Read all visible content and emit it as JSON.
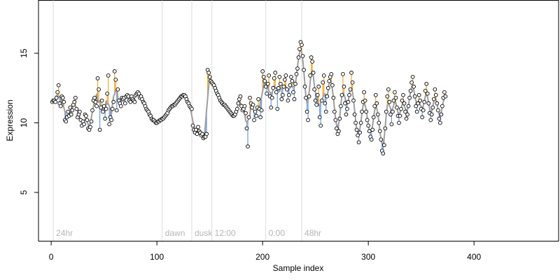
{
  "chart_data": {
    "type": "scatter",
    "xlabel": "Sample index",
    "ylabel": "Expression",
    "xlim": [
      -12,
      480
    ],
    "ylim": [
      1.5,
      18.8
    ],
    "x_ticks": [
      0,
      100,
      200,
      300,
      400
    ],
    "y_ticks": [
      5,
      10,
      15
    ],
    "markers": [
      {
        "x": 2,
        "label": "24hr"
      },
      {
        "x": 105,
        "label": "dawn"
      },
      {
        "x": 133,
        "label": "dusk"
      },
      {
        "x": 152,
        "label": "12:00"
      },
      {
        "x": 203,
        "label": "0:00"
      },
      {
        "x": 237,
        "label": "48hr"
      }
    ],
    "colors": {
      "above": "#f5a623",
      "below": "#6b9be0",
      "fit": "#9e9e9e",
      "marker": "#dcdcdc",
      "point_edge": "#000000"
    },
    "series": [
      {
        "x_start": 1,
        "observed": [
          11.5,
          11.6,
          11.6,
          11.5,
          11.8,
          12.2,
          12.7,
          11.4,
          11.2,
          11.9,
          11.8,
          11.5,
          10.2,
          10.1,
          10.4,
          10.8,
          10.5,
          11.1,
          10.6,
          10.9,
          11.3,
          11.5,
          11.8,
          11.0,
          10.4,
          10.6,
          10.8,
          10.2,
          9.8,
          10.1,
          9.9,
          10.6,
          10.5,
          10.2,
          9.6,
          9.5,
          9.7,
          10.1,
          10.9,
          11.6,
          11.8,
          11.5,
          11.2,
          13.2,
          12.4,
          9.5,
          11.1,
          11.6,
          10.8,
          11.2,
          10.3,
          11.0,
          12.1,
          13.4,
          9.9,
          10.4,
          10.2,
          11.0,
          11.5,
          13.7,
          13.1,
          10.9,
          12.4,
          11.6,
          11.4,
          11.2,
          11.8,
          11.7,
          11.8,
          11.4,
          11.9,
          12.0,
          11.9,
          11.6,
          11.5,
          11.9,
          11.7,
          11.6,
          11.5,
          12.0,
          12.1,
          12.2,
          12.1,
          11.8,
          11.9,
          11.7,
          11.5,
          11.4,
          11.2,
          11.0,
          10.9,
          10.8,
          10.6,
          10.5,
          10.3,
          10.2,
          10.2,
          10.1,
          10.0,
          10.0,
          10.1,
          10.1,
          10.2,
          10.2,
          10.3,
          10.3,
          10.4,
          10.5,
          10.6,
          10.7,
          10.9,
          11.0,
          11.1,
          11.2,
          11.2,
          11.3,
          11.3,
          11.4,
          11.5,
          11.6,
          11.7,
          11.8,
          11.9,
          11.9,
          12.0,
          12.0,
          11.9,
          11.7,
          11.5,
          11.4,
          11.2,
          11.1,
          11.0,
          9.8,
          9.5,
          9.3,
          9.5,
          9.2,
          9.7,
          9.4,
          9.3,
          9.1,
          9.2,
          8.9,
          9.0,
          9.0,
          9.2,
          13.8,
          13.6,
          13.3,
          13.0,
          12.9,
          12.8,
          12.7,
          12.5,
          12.3,
          12.1,
          12.0,
          11.8,
          11.6,
          11.5,
          11.4,
          11.3,
          11.3,
          11.2,
          11.1,
          11.0,
          10.9,
          10.8,
          10.7,
          10.6,
          10.5,
          10.5,
          10.6,
          10.8,
          11.0,
          11.4,
          11.7,
          11.9,
          11.2,
          10.9,
          11.0,
          11.2,
          10.7,
          9.6,
          8.3,
          10.4,
          11.8,
          11.4,
          11.1,
          11.3,
          10.2,
          10.8,
          10.5,
          11.1,
          11.7,
          11.0,
          10.4,
          10.9,
          13.7,
          13.3,
          13.0,
          12.6,
          12.1,
          12.8,
          13.4,
          11.9,
          11.1,
          11.8,
          12.5,
          13.2,
          13.6,
          12.2,
          11.0,
          12.5,
          13.3,
          12.8,
          11.7,
          12.0,
          12.6,
          13.1,
          13.4,
          12.4,
          11.6,
          12.0,
          12.7,
          13.3,
          13.0,
          12.2,
          11.7,
          12.8,
          13.5,
          13.9,
          14.7,
          15.3,
          15.8,
          15.6,
          14.8,
          13.8,
          12.6,
          11.8,
          10.8,
          10.2,
          11.9,
          13.4,
          14.7,
          14.4,
          13.6,
          12.4,
          11.6,
          11.3,
          12.0,
          12.6,
          10.4,
          9.8,
          11.6,
          12.9,
          13.4,
          11.4,
          10.8,
          11.9,
          12.5,
          13.0,
          13.3,
          13.5,
          12.7,
          11.8,
          10.8,
          10.2,
          9.6,
          9.2,
          9.4,
          10.3,
          11.2,
          12.0,
          13.5,
          12.6,
          11.4,
          10.6,
          11.0,
          11.5,
          12.0,
          12.4,
          13.6,
          12.9,
          11.6,
          10.6,
          10.0,
          9.5,
          9.1,
          8.6,
          9.3,
          10.0,
          10.8,
          11.5,
          12.2,
          11.6,
          10.8,
          10.2,
          9.8,
          9.4,
          9.0,
          8.8,
          9.5,
          10.4,
          11.2,
          12.0,
          11.4,
          10.6,
          10.0,
          9.4,
          8.8,
          8.0,
          7.8,
          8.4,
          9.6,
          10.8,
          11.9,
          12.4,
          11.5,
          10.6,
          9.9,
          10.8,
          11.6,
          12.2,
          11.8,
          11.1,
          10.5,
          10.0,
          10.5,
          11.0,
          11.6,
          12.0,
          11.4,
          10.8,
          10.3,
          10.6,
          11.2,
          11.8,
          12.3,
          12.9,
          13.3,
          12.6,
          11.9,
          11.2,
          10.8,
          11.4,
          12.0,
          11.6,
          11.0,
          10.4,
          10.9,
          11.5,
          12.3,
          12.8,
          12.1,
          11.4,
          10.7,
          10.2,
          10.6,
          11.1,
          11.7,
          12.4,
          12.0,
          11.4,
          10.9,
          10.3,
          10.0,
          10.6,
          11.2,
          11.8,
          12.2,
          11.9
        ]
      }
    ]
  }
}
